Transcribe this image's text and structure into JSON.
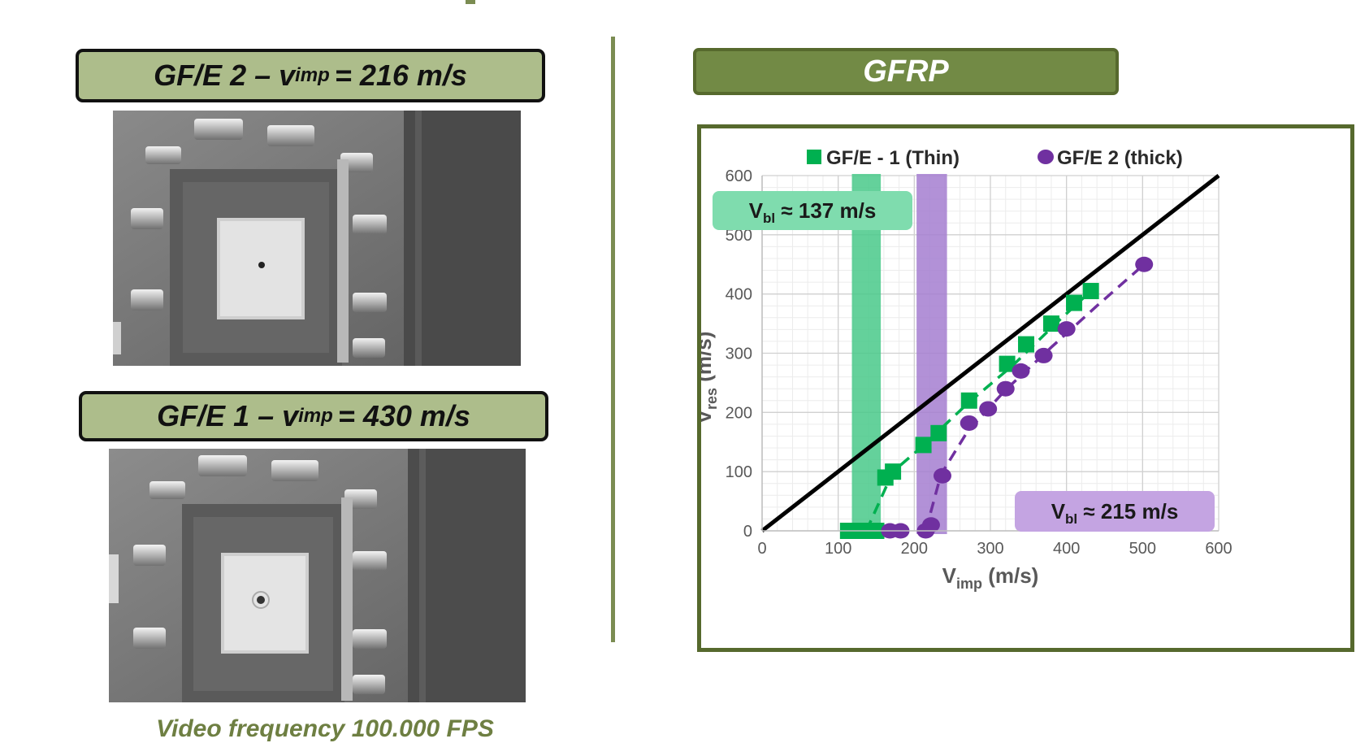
{
  "left_panel": {
    "top_label": {
      "text": "GF/E 2 – v",
      "sub": "imp",
      "tail": "= 216 m/s"
    },
    "bottom_label": {
      "text": "GF/E 1 – v",
      "sub": "imp",
      "tail": "= 430 m/s"
    },
    "caption": "Video frequency 100.000 FPS"
  },
  "right_panel": {
    "tag": "GFRP"
  },
  "colors": {
    "olive": "#7b8c52",
    "label_fill": "#adbd8b",
    "green": "#00b050",
    "purple": "#7030a0",
    "green_band": "#49c98a",
    "purple_band": "#a57ed0"
  },
  "chart_data": {
    "type": "scatter",
    "legend_position": "top",
    "grid": true,
    "xlabel": {
      "main": "V",
      "sub": "imp",
      "tail": "(m/s)"
    },
    "ylabel": {
      "main": "V",
      "sub": "res",
      "tail": "(m/s)"
    },
    "xlim": [
      0,
      600
    ],
    "ylim": [
      0,
      600
    ],
    "xticks": [
      0,
      100,
      200,
      300,
      400,
      500,
      600
    ],
    "yticks": [
      0,
      100,
      200,
      300,
      400,
      500,
      600
    ],
    "reference_line": {
      "x": [
        0,
        600
      ],
      "y": [
        0,
        600
      ]
    },
    "series": [
      {
        "name": "GF/E - 1 (Thin)",
        "marker": "square",
        "color": "#00b050",
        "x": [
          113,
          122,
          130,
          140,
          150,
          162,
          172,
          212,
          232,
          272,
          322,
          347,
          380,
          410,
          432
        ],
        "y": [
          0,
          0,
          0,
          0,
          0,
          90,
          100,
          145,
          165,
          220,
          282,
          315,
          350,
          385,
          405
        ],
        "fit": {
          "x": [
            137,
            172,
            210,
            270,
            330,
            390,
            432
          ],
          "y": [
            0,
            100,
            142,
            215,
            280,
            355,
            405
          ]
        }
      },
      {
        "name": "GF/E 2 (thick)",
        "marker": "circle",
        "color": "#7030a0",
        "x": [
          168,
          182,
          215,
          222,
          237,
          272,
          297,
          320,
          340,
          370,
          400,
          502
        ],
        "y": [
          0,
          0,
          0,
          10,
          93,
          182,
          206,
          240,
          270,
          296,
          341,
          450
        ],
        "fit": {
          "x": [
            215,
            235,
            270,
            320,
            380,
            440,
            502
          ],
          "y": [
            0,
            95,
            168,
            238,
            310,
            380,
            450
          ]
        }
      }
    ],
    "bands": [
      {
        "series": "GF/E - 1 (Thin)",
        "x_range": [
          118,
          156
        ],
        "color": "#49c98a"
      },
      {
        "series": "GF/E 2 (thick)",
        "x_range": [
          203,
          243
        ],
        "color": "#a57ed0"
      }
    ],
    "annotations": [
      {
        "series": "GF/E - 1 (Thin)",
        "main": "V",
        "sub": "bl",
        "tail": "≈ 137 m/s",
        "color": "#7fdcae"
      },
      {
        "series": "GF/E 2 (thick)",
        "main": "V",
        "sub": "bl",
        "tail": "≈ 215 m/s",
        "color": "#c4a4e2"
      }
    ]
  }
}
